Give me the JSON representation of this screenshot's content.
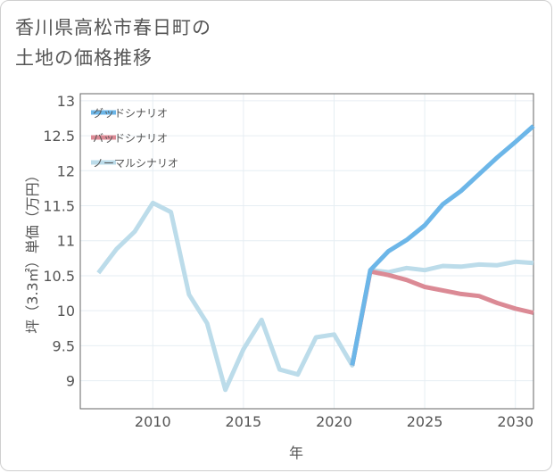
{
  "title_line1": "香川県高松市春日町の",
  "title_line2": "土地の価格推移",
  "chart_data": {
    "type": "line",
    "xlabel": "年",
    "ylabel": "坪（3.3㎡）単価（万円）",
    "xlim": [
      2006,
      2031
    ],
    "ylim": [
      8.6,
      13.1
    ],
    "xticks": [
      2010,
      2015,
      2020,
      2025,
      2030
    ],
    "yticks": [
      9,
      9.5,
      10,
      10.5,
      11,
      11.5,
      12,
      12.5,
      13
    ],
    "xtick_labels": [
      "2010",
      "2015",
      "2020",
      "2025",
      "2030"
    ],
    "ytick_labels": [
      "9",
      "9.5",
      "10",
      "10.5",
      "11",
      "11.5",
      "12",
      "12.5",
      "13"
    ],
    "grid": true,
    "legend_position": "top-left",
    "series": [
      {
        "name": "グッドシナリオ",
        "color": "#6cb6e8",
        "x": [
          2021,
          2022,
          2023,
          2024,
          2025,
          2026,
          2027,
          2028,
          2029,
          2030,
          2031
        ],
        "y": [
          9.22,
          10.58,
          10.85,
          11.01,
          11.22,
          11.52,
          11.71,
          11.95,
          12.19,
          12.41,
          12.64
        ]
      },
      {
        "name": "バッドシナリオ",
        "color": "#db8a95",
        "x": [
          2021,
          2022,
          2023,
          2024,
          2025,
          2026,
          2027,
          2028,
          2029,
          2030,
          2031
        ],
        "y": [
          9.22,
          10.56,
          10.51,
          10.44,
          10.34,
          10.29,
          10.24,
          10.21,
          10.11,
          10.03,
          9.97
        ]
      },
      {
        "name": "ノーマルシナリオ",
        "color": "#bcdcea",
        "x": [
          2007,
          2008,
          2009,
          2010,
          2011,
          2012,
          2013,
          2014,
          2015,
          2016,
          2017,
          2018,
          2019,
          2020,
          2021,
          2022,
          2023,
          2024,
          2025,
          2026,
          2027,
          2028,
          2029,
          2030,
          2031
        ],
        "y": [
          10.54,
          10.88,
          11.13,
          11.54,
          11.41,
          10.23,
          9.82,
          8.87,
          9.45,
          9.87,
          9.16,
          9.09,
          9.62,
          9.66,
          9.22,
          10.58,
          10.55,
          10.61,
          10.58,
          10.64,
          10.63,
          10.66,
          10.65,
          10.7,
          10.68
        ]
      }
    ]
  }
}
